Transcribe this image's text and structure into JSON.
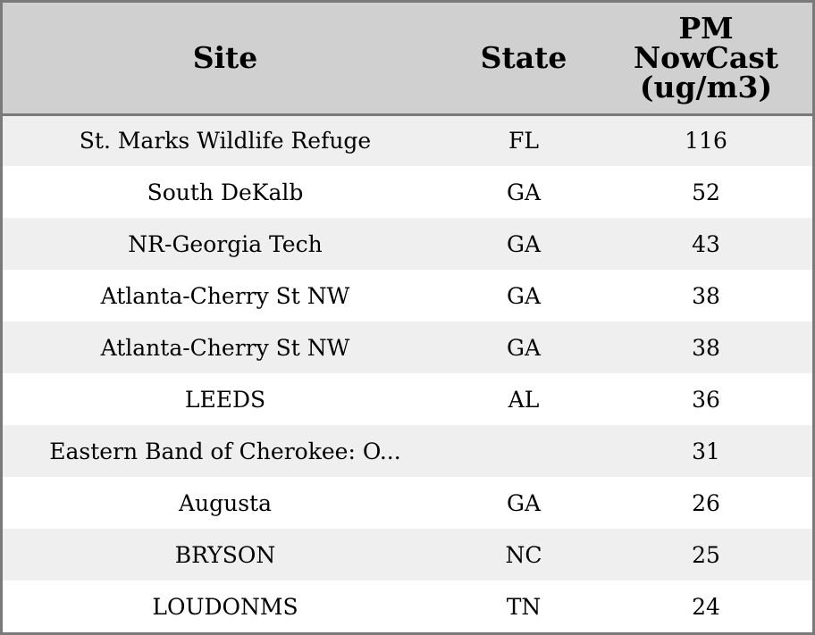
{
  "chart_data": {
    "type": "table",
    "columns": [
      "Site",
      "State",
      "PM NowCast (ug/m3)"
    ],
    "header_lines": {
      "site": [
        "Site"
      ],
      "state": [
        "State"
      ],
      "value": [
        "PM",
        "NowCast",
        "(ug/m3)"
      ]
    },
    "rows": [
      {
        "site": "St. Marks Wildlife Refuge",
        "state": "FL",
        "value": 116
      },
      {
        "site": "South DeKalb",
        "state": "GA",
        "value": 52
      },
      {
        "site": "NR-Georgia Tech",
        "state": "GA",
        "value": 43
      },
      {
        "site": "Atlanta-Cherry St NW",
        "state": "GA",
        "value": 38
      },
      {
        "site": "Atlanta-Cherry St NW",
        "state": "GA",
        "value": 38
      },
      {
        "site": "LEEDS",
        "state": "AL",
        "value": 36
      },
      {
        "site": "Eastern Band of Cherokee: O...",
        "state": "",
        "value": 31
      },
      {
        "site": "Augusta",
        "state": "GA",
        "value": 26
      },
      {
        "site": "BRYSON",
        "state": "NC",
        "value": 25
      },
      {
        "site": "LOUDONMS",
        "state": "TN",
        "value": 24
      }
    ],
    "colors": {
      "header_bg": "#d0d0d0",
      "row_odd_bg": "#efefef",
      "row_even_bg": "#ffffff",
      "border": "#7a7a7a"
    }
  }
}
